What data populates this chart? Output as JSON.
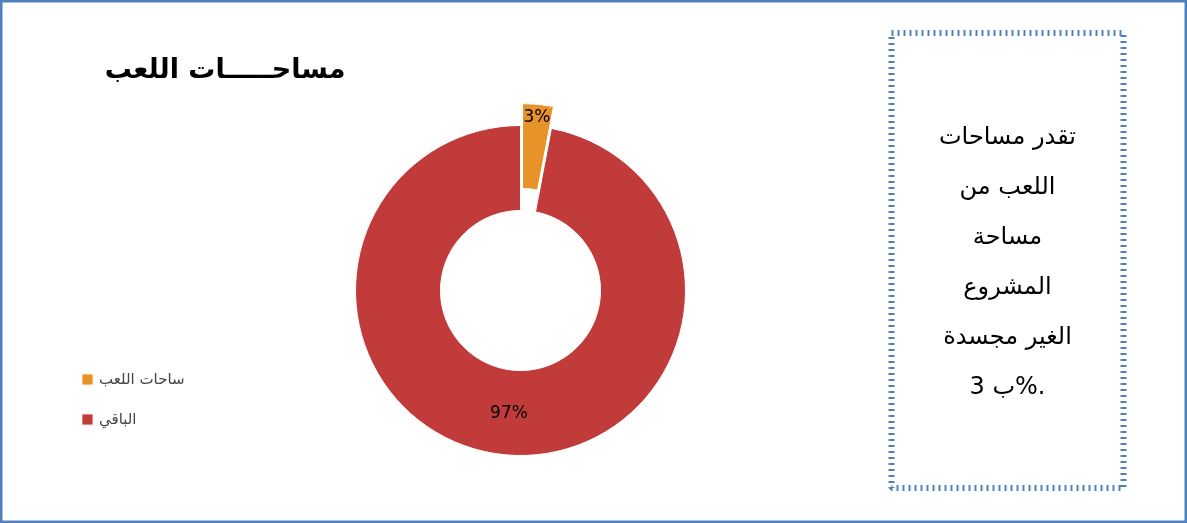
{
  "chart_data": {
    "type": "donut",
    "title": "مساحـــــات اللعب",
    "categories": [
      "ساحات اللعب",
      "الباقي"
    ],
    "values": [
      3,
      97
    ],
    "colors": [
      "#e8922a",
      "#c13b3a"
    ],
    "value_labels": [
      "3%",
      "97%"
    ],
    "legend": "left",
    "annotations": [
      "تقدر مساحات\nاللعب من\nمساحة\nالمشروع\nالغير مجسدة\nب 3%."
    ]
  }
}
